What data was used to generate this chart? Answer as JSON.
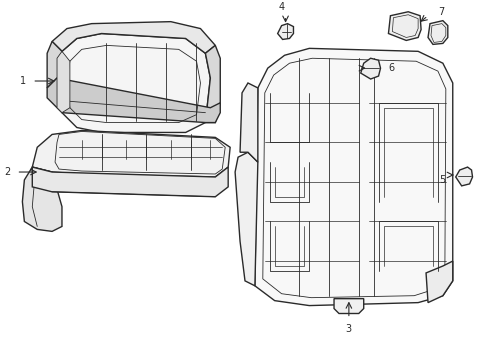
{
  "background_color": "#ffffff",
  "line_color": "#2a2a2a",
  "label_color": "#000000",
  "fig_width": 4.89,
  "fig_height": 3.6,
  "dpi": 100,
  "lw_main": 1.0,
  "lw_inner": 0.6,
  "lw_detail": 0.5
}
